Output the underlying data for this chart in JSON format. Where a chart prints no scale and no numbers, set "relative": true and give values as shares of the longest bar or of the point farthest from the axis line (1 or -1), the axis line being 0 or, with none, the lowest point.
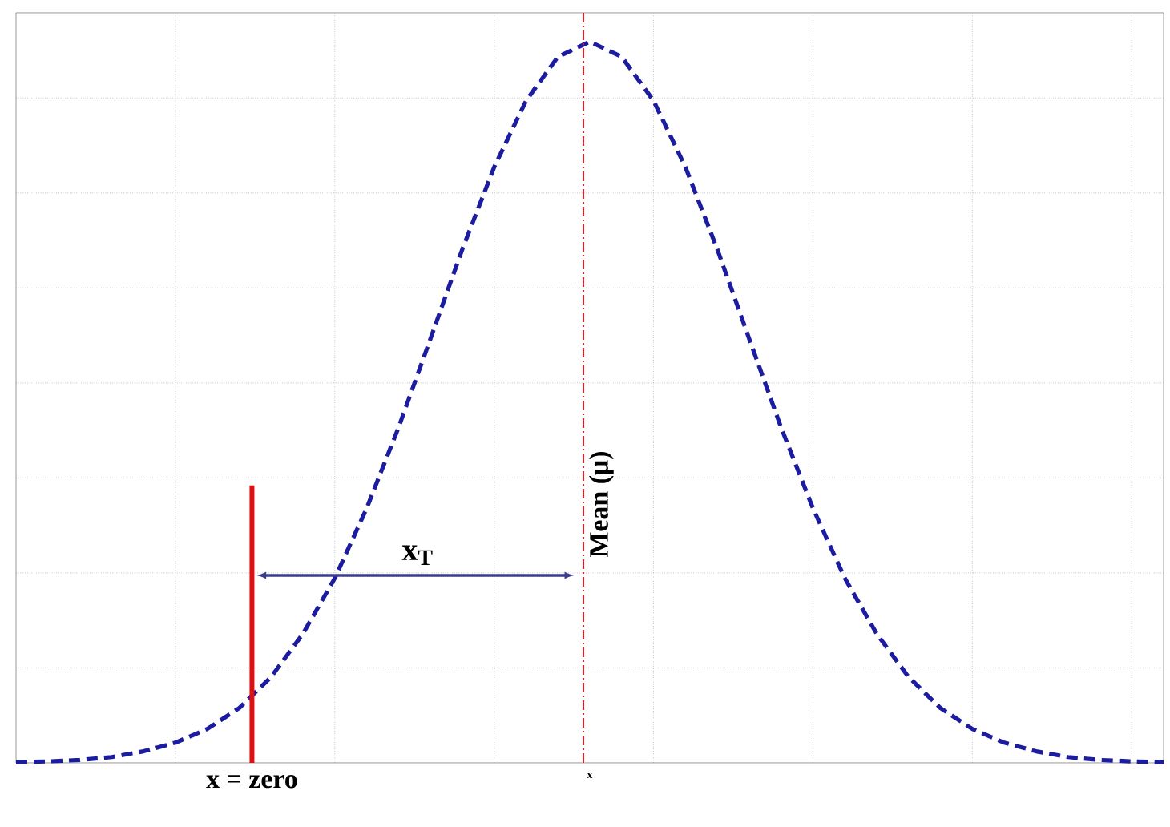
{
  "chart_data": {
    "type": "line",
    "relative": true,
    "xlabel": "x",
    "grid": true,
    "line_style": "dashed",
    "marker": "none",
    "categories": [
      null,
      null,
      null,
      null,
      null,
      null,
      null,
      null,
      null,
      null,
      null,
      null,
      null,
      null,
      null,
      null,
      null,
      null,
      null,
      null,
      null,
      null,
      null,
      null,
      null,
      null,
      null,
      null,
      null,
      null,
      null,
      null,
      null,
      null,
      null,
      null,
      null
    ],
    "series": [
      {
        "color": "#1c1ca0",
        "values": [
          0.001,
          0.002,
          0.004,
          0.008,
          0.016,
          0.028,
          0.047,
          0.076,
          0.119,
          0.179,
          0.256,
          0.353,
          0.465,
          0.588,
          0.712,
          0.826,
          0.918,
          0.979,
          1.0,
          0.979,
          0.918,
          0.826,
          0.712,
          0.588,
          0.465,
          0.353,
          0.256,
          0.179,
          0.119,
          0.076,
          0.047,
          0.028,
          0.016,
          0.008,
          0.004,
          0.002,
          0.001
        ]
      }
    ],
    "annotations": [
      "x = zero",
      "Mean (μ)",
      "x$_{T}$"
    ]
  }
}
